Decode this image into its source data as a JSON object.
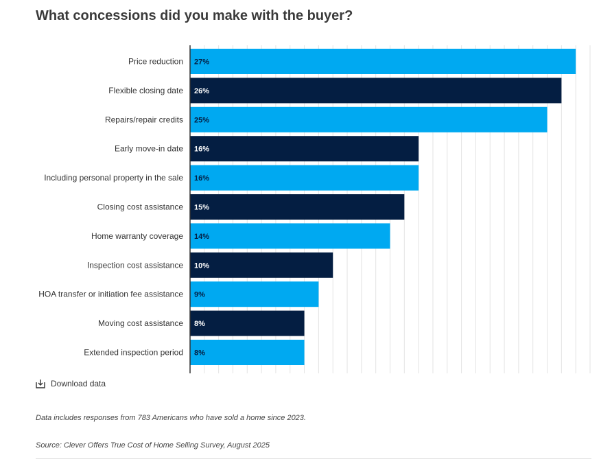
{
  "title": "What concessions did you make with the buyer?",
  "download_label": "Download data",
  "notes": {
    "responses": "Data includes responses from 783 Americans who have sold a home since 2023.",
    "source": "Source: Clever Offers True Cost of Home Selling Survey, August 2025"
  },
  "colors": {
    "light": "#00a9f1",
    "dark": "#041e42",
    "label_on_light": "#041e42",
    "label_on_dark": "#ffffff",
    "grid": "#e3e3e3"
  },
  "chart_data": {
    "type": "bar",
    "orientation": "horizontal",
    "categories": [
      "Price reduction",
      "Flexible closing date",
      "Repairs/repair credits",
      "Early move-in date",
      "Including personal property in the sale",
      "Closing cost assistance",
      "Home warranty coverage",
      "Inspection cost assistance",
      "HOA transfer or initiation fee assistance",
      "Moving cost assistance",
      "Extended inspection period"
    ],
    "values": [
      27,
      26,
      25,
      16,
      16,
      15,
      14,
      10,
      9,
      8,
      8
    ],
    "value_labels": [
      "27%",
      "26%",
      "25%",
      "16%",
      "16%",
      "15%",
      "14%",
      "10%",
      "9%",
      "8%",
      "8%"
    ],
    "bar_colors": [
      "light",
      "dark",
      "light",
      "dark",
      "light",
      "dark",
      "light",
      "dark",
      "light",
      "dark",
      "light"
    ],
    "xlim": [
      0,
      28
    ],
    "grid": true,
    "legend": "none"
  }
}
